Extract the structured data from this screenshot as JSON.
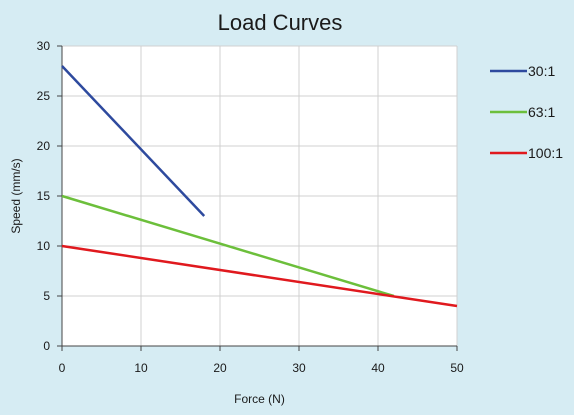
{
  "chart_data": {
    "type": "line",
    "title": "Load Curves",
    "xlabel": "Force (N)",
    "ylabel": "Speed (mm/s)",
    "xlim": [
      0,
      50
    ],
    "ylim": [
      0,
      30
    ],
    "x_ticks": [
      0,
      10,
      20,
      30,
      40,
      50
    ],
    "y_ticks": [
      0,
      5,
      10,
      15,
      20,
      25,
      30
    ],
    "grid": true,
    "legend_position": "right",
    "background_color": "#d6ecf3",
    "plot_background_color": "#ffffff",
    "series": [
      {
        "name": "30:1",
        "color": "#2e4a9e",
        "x": [
          0,
          18
        ],
        "y": [
          28,
          13
        ]
      },
      {
        "name": "63:1",
        "color": "#6cbf3b",
        "x": [
          0,
          42
        ],
        "y": [
          15,
          5
        ]
      },
      {
        "name": "100:1",
        "color": "#e0191e",
        "x": [
          0,
          50
        ],
        "y": [
          10,
          4
        ]
      }
    ]
  }
}
